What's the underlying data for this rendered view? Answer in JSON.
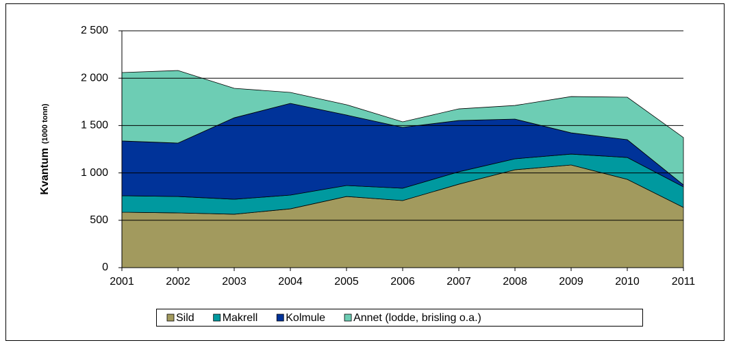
{
  "chart_data": {
    "type": "stacked_area",
    "y_label": "Kvantum",
    "y_label_unit": "(1000 tonn)",
    "categories": [
      "2001",
      "2002",
      "2003",
      "2004",
      "2005",
      "2006",
      "2007",
      "2008",
      "2009",
      "2010",
      "2011"
    ],
    "series": [
      {
        "name": "Sild",
        "color": "#a29a5e",
        "values": [
          585,
          578,
          564,
          621,
          751,
          708,
          881,
          1033,
          1084,
          932,
          636
        ]
      },
      {
        "name": "Makrell",
        "color": "#00999f",
        "values": [
          174,
          173,
          158,
          145,
          116,
          130,
          131,
          116,
          115,
          231,
          217
        ]
      },
      {
        "name": "Kolmule",
        "color": "#003399",
        "values": [
          578,
          564,
          860,
          968,
          744,
          643,
          541,
          419,
          224,
          188,
          21
        ]
      },
      {
        "name": "Annet (lodde, brisling o.a.)",
        "color": "#6dcdb4",
        "values": [
          722,
          766,
          311,
          116,
          109,
          58,
          123,
          144,
          383,
          448,
          499
        ]
      }
    ],
    "ylim": [
      0,
      2500
    ],
    "yticks": [
      0,
      500,
      {
        "value": 1000,
        "label": "1 000"
      },
      {
        "value": 1500,
        "label": "1 500"
      },
      {
        "value": 2000,
        "label": "2 000"
      },
      {
        "value": 2500,
        "label": "2 500"
      }
    ],
    "grid": true,
    "legend": "bottom"
  }
}
